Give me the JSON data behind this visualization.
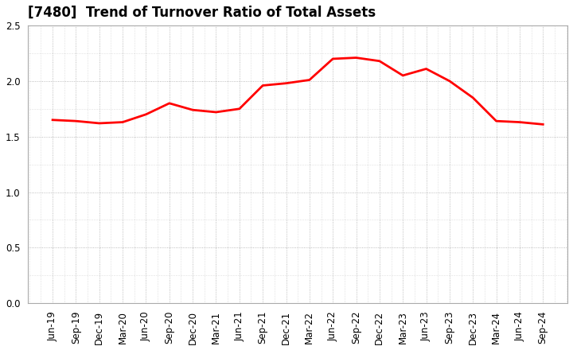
{
  "title": "[7480]  Trend of Turnover Ratio of Total Assets",
  "x_labels": [
    "Jun-19",
    "Sep-19",
    "Dec-19",
    "Mar-20",
    "Jun-20",
    "Sep-20",
    "Dec-20",
    "Mar-21",
    "Jun-21",
    "Sep-21",
    "Dec-21",
    "Mar-22",
    "Jun-22",
    "Sep-22",
    "Dec-22",
    "Mar-23",
    "Jun-23",
    "Sep-23",
    "Dec-23",
    "Mar-24",
    "Jun-24",
    "Sep-24"
  ],
  "values": [
    1.65,
    1.64,
    1.62,
    1.63,
    1.7,
    1.8,
    1.74,
    1.72,
    1.75,
    1.96,
    1.98,
    2.01,
    2.2,
    2.21,
    2.18,
    2.05,
    2.11,
    2.0,
    1.85,
    1.64,
    1.63,
    1.61
  ],
  "line_color": "#FF0000",
  "line_width": 2.0,
  "ylim": [
    0.0,
    2.5
  ],
  "yticks": [
    0.0,
    0.5,
    1.0,
    1.5,
    2.0,
    2.5
  ],
  "grid_color": "#aaaaaa",
  "bg_color": "#ffffff",
  "title_fontsize": 12,
  "tick_fontsize": 8.5,
  "spine_color": "#aaaaaa"
}
